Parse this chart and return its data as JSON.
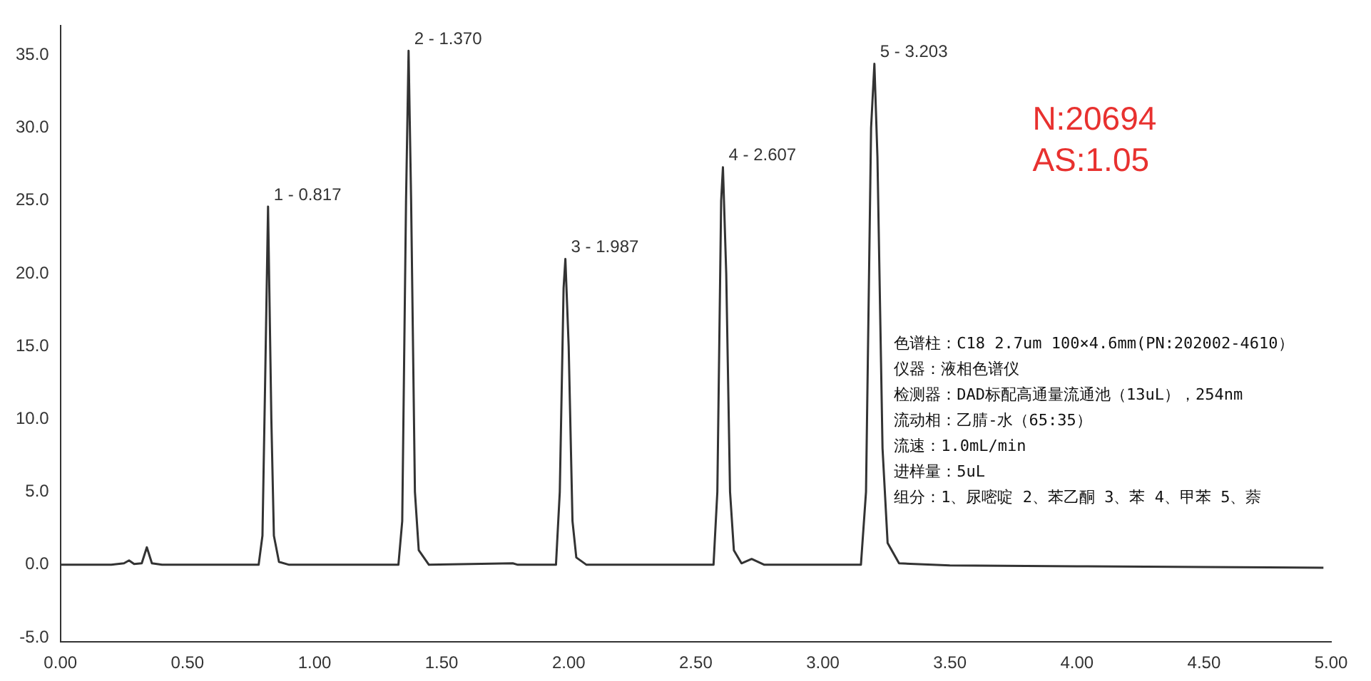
{
  "chart_data": {
    "type": "line",
    "x": [
      0,
      0.2,
      0.25,
      0.27,
      0.29,
      0.32,
      0.34,
      0.36,
      0.4,
      0.78,
      0.795,
      0.805,
      0.817,
      0.83,
      0.84,
      0.86,
      0.9,
      1.33,
      1.345,
      1.36,
      1.37,
      1.38,
      1.395,
      1.41,
      1.45,
      1.78,
      1.8,
      1.95,
      1.965,
      1.98,
      1.987,
      2.0,
      2.015,
      2.03,
      2.07,
      2.57,
      2.585,
      2.6,
      2.607,
      2.62,
      2.635,
      2.65,
      2.68,
      2.72,
      2.77,
      3.15,
      3.17,
      3.19,
      3.203,
      3.215,
      3.235,
      3.255,
      3.3,
      3.5,
      4.0,
      4.5,
      4.97
    ],
    "series": [
      {
        "color": "#333333",
        "values": [
          0,
          0,
          0.1,
          0.3,
          0.05,
          0.1,
          1.2,
          0.1,
          0,
          0,
          2,
          12,
          24.6,
          10,
          2,
          0.2,
          0,
          0,
          3,
          25,
          35.3,
          25,
          5,
          1,
          0,
          0.1,
          0,
          0,
          5,
          19,
          21.0,
          15,
          3,
          0.5,
          0,
          0,
          5,
          25,
          27.3,
          20,
          5,
          1,
          0.1,
          0.4,
          0,
          0,
          5,
          30,
          34.4,
          28,
          8,
          1.5,
          0.1,
          -0.05,
          -0.1,
          -0.15,
          -0.2
        ]
      }
    ],
    "xlim": [
      0,
      5
    ],
    "xticks": [
      {
        "value": 0,
        "label": "0.00"
      },
      {
        "value": 0.5,
        "label": "0.50"
      },
      {
        "value": 1,
        "label": "1.00"
      },
      {
        "value": 1.5,
        "label": "1.50"
      },
      {
        "value": 2,
        "label": "2.00"
      },
      {
        "value": 2.5,
        "label": "2.50"
      },
      {
        "value": 3,
        "label": "3.00"
      },
      {
        "value": 3.5,
        "label": "3.50"
      },
      {
        "value": 4,
        "label": "4.00"
      },
      {
        "value": 4.5,
        "label": "4.50"
      },
      {
        "value": 5,
        "label": "5.00"
      }
    ],
    "ylim": [
      -5.3,
      37
    ],
    "yticks": [
      {
        "value": -5,
        "label": "-5.0"
      },
      {
        "value": 0,
        "label": "0.0"
      },
      {
        "value": 5,
        "label": "5.0"
      },
      {
        "value": 10,
        "label": "10.0"
      },
      {
        "value": 15,
        "label": "15.0"
      },
      {
        "value": 20,
        "label": "20.0"
      },
      {
        "value": 25,
        "label": "25.0"
      },
      {
        "value": 30,
        "label": "30.0"
      },
      {
        "value": 35,
        "label": "35.0"
      }
    ],
    "grid": false,
    "legend": false,
    "marker": "none",
    "line_style": "solid",
    "annotations": [
      {
        "text": "1 - 0.817",
        "x": 0.817,
        "y": 24.6
      },
      {
        "text": "2 - 1.370",
        "x": 1.37,
        "y": 35.3
      },
      {
        "text": "3 - 1.987",
        "x": 1.987,
        "y": 21.0
      },
      {
        "text": "4 - 2.607",
        "x": 2.607,
        "y": 27.3
      },
      {
        "text": "5 - 3.203",
        "x": 3.203,
        "y": 34.4
      },
      "N:20694",
      "AS:1.05",
      "色谱柱：C18 2.7um 100×4.6mm(PN:202002-4610）",
      "仪器：液相色谱仪",
      "检测器：DAD标配高通量流通池（13uL），254nm",
      "流动相：乙腈-水（65:35）",
      "流速：1.0mL/min",
      "进样量：5uL",
      "组分：1、尿嘧啶 2、苯乙酮 3、苯 4、甲苯 5、萘"
    ]
  }
}
